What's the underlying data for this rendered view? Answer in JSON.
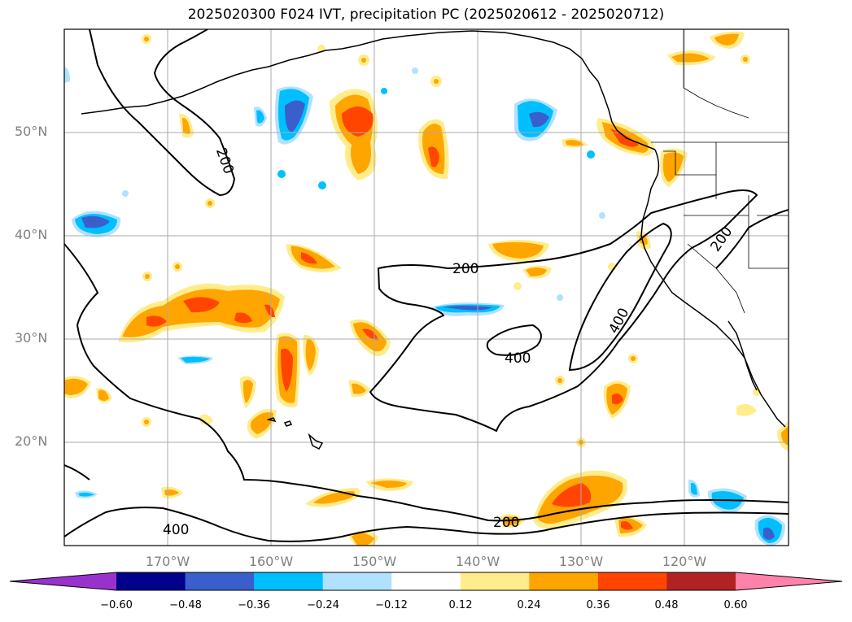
{
  "title": "2025020300 F024 IVT, precipitation PC (2025020612 - 2025020712)",
  "map": {
    "projection": "plate-carree",
    "lon_range": [
      -180,
      -110
    ],
    "lat_range": [
      10,
      60
    ],
    "lat_labels": [
      "50°N",
      "40°N",
      "30°N",
      "20°N"
    ],
    "lon_labels": [
      "170°W",
      "160°W",
      "150°W",
      "140°W",
      "130°W",
      "120°W"
    ],
    "contour_labels": [
      "200",
      "200",
      "200",
      "200",
      "400",
      "400",
      "400"
    ]
  },
  "colorbar": {
    "ticks": [
      "−0.60",
      "−0.48",
      "−0.36",
      "−0.24",
      "−0.12",
      "0.12",
      "0.24",
      "0.36",
      "0.48",
      "0.60"
    ],
    "colors": [
      "#9932cc",
      "#00008b",
      "#3a5fcd",
      "#00bfff",
      "#b0e2ff",
      "#ffffff",
      "#ffec8b",
      "#ffa500",
      "#ff4500",
      "#b22222",
      "#ff82ab"
    ],
    "extend": "both"
  }
}
